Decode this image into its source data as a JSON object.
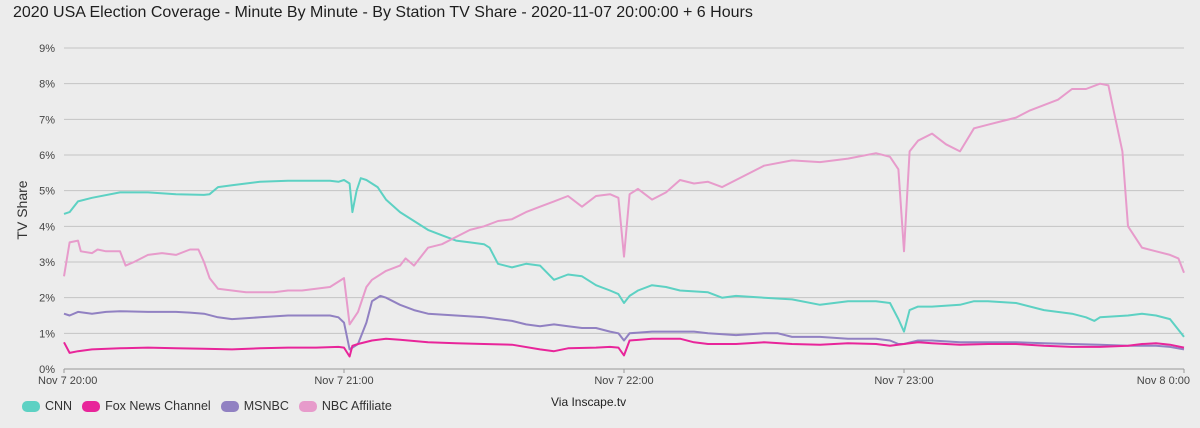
{
  "chart_data": {
    "type": "line",
    "title": "2020 USA Election Coverage - Minute By Minute - By Station TV Share - 2020-11-07 20:00:00 + 6 Hours",
    "ylabel": "TV Share",
    "xlabel": "",
    "source": "Via Inscape.tv",
    "x_ticks": [
      "Nov 7 20:00",
      "Nov 7 21:00",
      "Nov 7 22:00",
      "Nov 7 23:00",
      "Nov 8 0:00"
    ],
    "y_ticks": [
      "0%",
      "1%",
      "2%",
      "3%",
      "4%",
      "5%",
      "6%",
      "7%",
      "8%",
      "9%"
    ],
    "ylim": [
      0,
      9
    ],
    "xlim_hours_after_start": [
      0,
      4
    ],
    "grid": true,
    "legend_position": "bottom-left",
    "series": [
      {
        "name": "CNN",
        "color": "#5dd1c3",
        "points": [
          [
            0,
            4.35
          ],
          [
            0.02,
            4.4
          ],
          [
            0.05,
            4.7
          ],
          [
            0.1,
            4.8
          ],
          [
            0.2,
            4.95
          ],
          [
            0.3,
            4.95
          ],
          [
            0.4,
            4.9
          ],
          [
            0.5,
            4.88
          ],
          [
            0.52,
            4.9
          ],
          [
            0.55,
            5.1
          ],
          [
            0.6,
            5.15
          ],
          [
            0.65,
            5.2
          ],
          [
            0.7,
            5.25
          ],
          [
            0.8,
            5.28
          ],
          [
            0.9,
            5.28
          ],
          [
            0.95,
            5.28
          ],
          [
            0.98,
            5.25
          ],
          [
            1.0,
            5.3
          ],
          [
            1.02,
            5.2
          ],
          [
            1.03,
            4.4
          ],
          [
            1.045,
            5.0
          ],
          [
            1.06,
            5.35
          ],
          [
            1.08,
            5.3
          ],
          [
            1.12,
            5.1
          ],
          [
            1.15,
            4.75
          ],
          [
            1.2,
            4.4
          ],
          [
            1.25,
            4.15
          ],
          [
            1.3,
            3.9
          ],
          [
            1.35,
            3.75
          ],
          [
            1.4,
            3.6
          ],
          [
            1.45,
            3.55
          ],
          [
            1.5,
            3.5
          ],
          [
            1.52,
            3.4
          ],
          [
            1.55,
            2.95
          ],
          [
            1.6,
            2.85
          ],
          [
            1.65,
            2.95
          ],
          [
            1.7,
            2.9
          ],
          [
            1.75,
            2.5
          ],
          [
            1.8,
            2.65
          ],
          [
            1.85,
            2.6
          ],
          [
            1.9,
            2.35
          ],
          [
            1.95,
            2.2
          ],
          [
            1.98,
            2.1
          ],
          [
            2.0,
            1.85
          ],
          [
            2.02,
            2.05
          ],
          [
            2.05,
            2.2
          ],
          [
            2.1,
            2.35
          ],
          [
            2.15,
            2.3
          ],
          [
            2.2,
            2.2
          ],
          [
            2.3,
            2.15
          ],
          [
            2.35,
            2.0
          ],
          [
            2.4,
            2.05
          ],
          [
            2.5,
            2.0
          ],
          [
            2.6,
            1.95
          ],
          [
            2.7,
            1.8
          ],
          [
            2.8,
            1.9
          ],
          [
            2.9,
            1.9
          ],
          [
            2.95,
            1.85
          ],
          [
            2.98,
            1.4
          ],
          [
            3.0,
            1.05
          ],
          [
            3.02,
            1.65
          ],
          [
            3.05,
            1.75
          ],
          [
            3.1,
            1.75
          ],
          [
            3.2,
            1.8
          ],
          [
            3.25,
            1.9
          ],
          [
            3.3,
            1.9
          ],
          [
            3.4,
            1.85
          ],
          [
            3.5,
            1.65
          ],
          [
            3.6,
            1.55
          ],
          [
            3.65,
            1.45
          ],
          [
            3.68,
            1.35
          ],
          [
            3.7,
            1.45
          ],
          [
            3.8,
            1.5
          ],
          [
            3.85,
            1.55
          ],
          [
            3.9,
            1.5
          ],
          [
            3.95,
            1.4
          ],
          [
            3.98,
            1.1
          ],
          [
            4.0,
            0.9
          ]
        ]
      },
      {
        "name": "Fox News Channel",
        "color": "#e8259a",
        "points": [
          [
            0,
            0.75
          ],
          [
            0.02,
            0.45
          ],
          [
            0.05,
            0.5
          ],
          [
            0.1,
            0.55
          ],
          [
            0.2,
            0.58
          ],
          [
            0.3,
            0.6
          ],
          [
            0.4,
            0.58
          ],
          [
            0.5,
            0.57
          ],
          [
            0.6,
            0.55
          ],
          [
            0.7,
            0.58
          ],
          [
            0.8,
            0.6
          ],
          [
            0.9,
            0.6
          ],
          [
            0.98,
            0.62
          ],
          [
            1.0,
            0.6
          ],
          [
            1.02,
            0.35
          ],
          [
            1.03,
            0.65
          ],
          [
            1.05,
            0.7
          ],
          [
            1.1,
            0.8
          ],
          [
            1.15,
            0.85
          ],
          [
            1.2,
            0.82
          ],
          [
            1.3,
            0.75
          ],
          [
            1.4,
            0.72
          ],
          [
            1.5,
            0.7
          ],
          [
            1.6,
            0.68
          ],
          [
            1.7,
            0.55
          ],
          [
            1.75,
            0.5
          ],
          [
            1.8,
            0.58
          ],
          [
            1.9,
            0.6
          ],
          [
            1.95,
            0.62
          ],
          [
            1.98,
            0.6
          ],
          [
            2.0,
            0.38
          ],
          [
            2.02,
            0.8
          ],
          [
            2.1,
            0.85
          ],
          [
            2.2,
            0.85
          ],
          [
            2.25,
            0.75
          ],
          [
            2.3,
            0.7
          ],
          [
            2.4,
            0.7
          ],
          [
            2.5,
            0.75
          ],
          [
            2.6,
            0.7
          ],
          [
            2.7,
            0.68
          ],
          [
            2.8,
            0.72
          ],
          [
            2.9,
            0.7
          ],
          [
            2.95,
            0.65
          ],
          [
            3.0,
            0.7
          ],
          [
            3.05,
            0.75
          ],
          [
            3.1,
            0.72
          ],
          [
            3.2,
            0.68
          ],
          [
            3.3,
            0.7
          ],
          [
            3.4,
            0.7
          ],
          [
            3.5,
            0.65
          ],
          [
            3.6,
            0.62
          ],
          [
            3.7,
            0.62
          ],
          [
            3.8,
            0.65
          ],
          [
            3.85,
            0.7
          ],
          [
            3.9,
            0.72
          ],
          [
            3.95,
            0.68
          ],
          [
            4.0,
            0.6
          ]
        ]
      },
      {
        "name": "MSNBC",
        "color": "#9181c2",
        "points": [
          [
            0,
            1.55
          ],
          [
            0.02,
            1.5
          ],
          [
            0.05,
            1.6
          ],
          [
            0.1,
            1.55
          ],
          [
            0.15,
            1.6
          ],
          [
            0.2,
            1.62
          ],
          [
            0.3,
            1.6
          ],
          [
            0.4,
            1.6
          ],
          [
            0.45,
            1.58
          ],
          [
            0.5,
            1.55
          ],
          [
            0.55,
            1.45
          ],
          [
            0.6,
            1.4
          ],
          [
            0.7,
            1.45
          ],
          [
            0.8,
            1.5
          ],
          [
            0.9,
            1.5
          ],
          [
            0.95,
            1.5
          ],
          [
            0.98,
            1.45
          ],
          [
            1.0,
            1.3
          ],
          [
            1.02,
            0.55
          ],
          [
            1.03,
            0.6
          ],
          [
            1.05,
            0.7
          ],
          [
            1.08,
            1.3
          ],
          [
            1.1,
            1.9
          ],
          [
            1.13,
            2.05
          ],
          [
            1.15,
            2.0
          ],
          [
            1.2,
            1.8
          ],
          [
            1.25,
            1.65
          ],
          [
            1.3,
            1.55
          ],
          [
            1.4,
            1.5
          ],
          [
            1.5,
            1.45
          ],
          [
            1.55,
            1.4
          ],
          [
            1.6,
            1.35
          ],
          [
            1.65,
            1.25
          ],
          [
            1.7,
            1.2
          ],
          [
            1.75,
            1.25
          ],
          [
            1.8,
            1.2
          ],
          [
            1.85,
            1.15
          ],
          [
            1.9,
            1.15
          ],
          [
            1.95,
            1.05
          ],
          [
            1.98,
            1.0
          ],
          [
            2.0,
            0.8
          ],
          [
            2.02,
            1.0
          ],
          [
            2.1,
            1.05
          ],
          [
            2.2,
            1.05
          ],
          [
            2.25,
            1.05
          ],
          [
            2.3,
            1.0
          ],
          [
            2.4,
            0.95
          ],
          [
            2.5,
            1.0
          ],
          [
            2.55,
            1.0
          ],
          [
            2.6,
            0.9
          ],
          [
            2.7,
            0.9
          ],
          [
            2.8,
            0.85
          ],
          [
            2.9,
            0.85
          ],
          [
            2.95,
            0.8
          ],
          [
            2.98,
            0.7
          ],
          [
            3.0,
            0.7
          ],
          [
            3.05,
            0.8
          ],
          [
            3.1,
            0.8
          ],
          [
            3.2,
            0.75
          ],
          [
            3.3,
            0.75
          ],
          [
            3.4,
            0.75
          ],
          [
            3.5,
            0.72
          ],
          [
            3.6,
            0.7
          ],
          [
            3.7,
            0.68
          ],
          [
            3.8,
            0.65
          ],
          [
            3.9,
            0.65
          ],
          [
            3.95,
            0.62
          ],
          [
            4.0,
            0.55
          ]
        ]
      },
      {
        "name": "NBC Affiliate",
        "color": "#e79bcb",
        "points": [
          [
            0,
            2.6
          ],
          [
            0.02,
            3.55
          ],
          [
            0.05,
            3.6
          ],
          [
            0.06,
            3.3
          ],
          [
            0.1,
            3.25
          ],
          [
            0.12,
            3.35
          ],
          [
            0.15,
            3.3
          ],
          [
            0.2,
            3.3
          ],
          [
            0.22,
            2.9
          ],
          [
            0.25,
            3.0
          ],
          [
            0.3,
            3.2
          ],
          [
            0.35,
            3.25
          ],
          [
            0.4,
            3.2
          ],
          [
            0.45,
            3.35
          ],
          [
            0.48,
            3.35
          ],
          [
            0.5,
            3.0
          ],
          [
            0.52,
            2.55
          ],
          [
            0.55,
            2.25
          ],
          [
            0.6,
            2.2
          ],
          [
            0.65,
            2.15
          ],
          [
            0.7,
            2.15
          ],
          [
            0.75,
            2.15
          ],
          [
            0.8,
            2.2
          ],
          [
            0.85,
            2.2
          ],
          [
            0.9,
            2.25
          ],
          [
            0.95,
            2.3
          ],
          [
            1.0,
            2.55
          ],
          [
            1.02,
            1.25
          ],
          [
            1.05,
            1.6
          ],
          [
            1.08,
            2.3
          ],
          [
            1.1,
            2.5
          ],
          [
            1.15,
            2.75
          ],
          [
            1.2,
            2.9
          ],
          [
            1.22,
            3.1
          ],
          [
            1.25,
            2.9
          ],
          [
            1.3,
            3.4
          ],
          [
            1.35,
            3.5
          ],
          [
            1.4,
            3.7
          ],
          [
            1.45,
            3.9
          ],
          [
            1.5,
            4.0
          ],
          [
            1.55,
            4.15
          ],
          [
            1.6,
            4.2
          ],
          [
            1.65,
            4.4
          ],
          [
            1.7,
            4.55
          ],
          [
            1.75,
            4.7
          ],
          [
            1.8,
            4.85
          ],
          [
            1.85,
            4.55
          ],
          [
            1.9,
            4.85
          ],
          [
            1.95,
            4.9
          ],
          [
            1.98,
            4.8
          ],
          [
            2.0,
            3.15
          ],
          [
            2.02,
            4.9
          ],
          [
            2.05,
            5.05
          ],
          [
            2.1,
            4.75
          ],
          [
            2.15,
            4.95
          ],
          [
            2.2,
            5.3
          ],
          [
            2.25,
            5.2
          ],
          [
            2.3,
            5.25
          ],
          [
            2.35,
            5.1
          ],
          [
            2.4,
            5.3
          ],
          [
            2.5,
            5.7
          ],
          [
            2.6,
            5.85
          ],
          [
            2.7,
            5.8
          ],
          [
            2.8,
            5.9
          ],
          [
            2.9,
            6.05
          ],
          [
            2.95,
            5.95
          ],
          [
            2.98,
            5.6
          ],
          [
            3.0,
            3.3
          ],
          [
            3.02,
            6.1
          ],
          [
            3.05,
            6.4
          ],
          [
            3.1,
            6.6
          ],
          [
            3.15,
            6.3
          ],
          [
            3.2,
            6.1
          ],
          [
            3.25,
            6.75
          ],
          [
            3.3,
            6.85
          ],
          [
            3.35,
            6.95
          ],
          [
            3.4,
            7.05
          ],
          [
            3.45,
            7.25
          ],
          [
            3.5,
            7.4
          ],
          [
            3.55,
            7.55
          ],
          [
            3.6,
            7.85
          ],
          [
            3.65,
            7.85
          ],
          [
            3.7,
            8.0
          ],
          [
            3.73,
            7.95
          ],
          [
            3.75,
            7.2
          ],
          [
            3.78,
            6.1
          ],
          [
            3.8,
            4.0
          ],
          [
            3.85,
            3.4
          ],
          [
            3.9,
            3.3
          ],
          [
            3.95,
            3.2
          ],
          [
            3.98,
            3.1
          ],
          [
            4.0,
            2.7
          ]
        ]
      }
    ]
  }
}
